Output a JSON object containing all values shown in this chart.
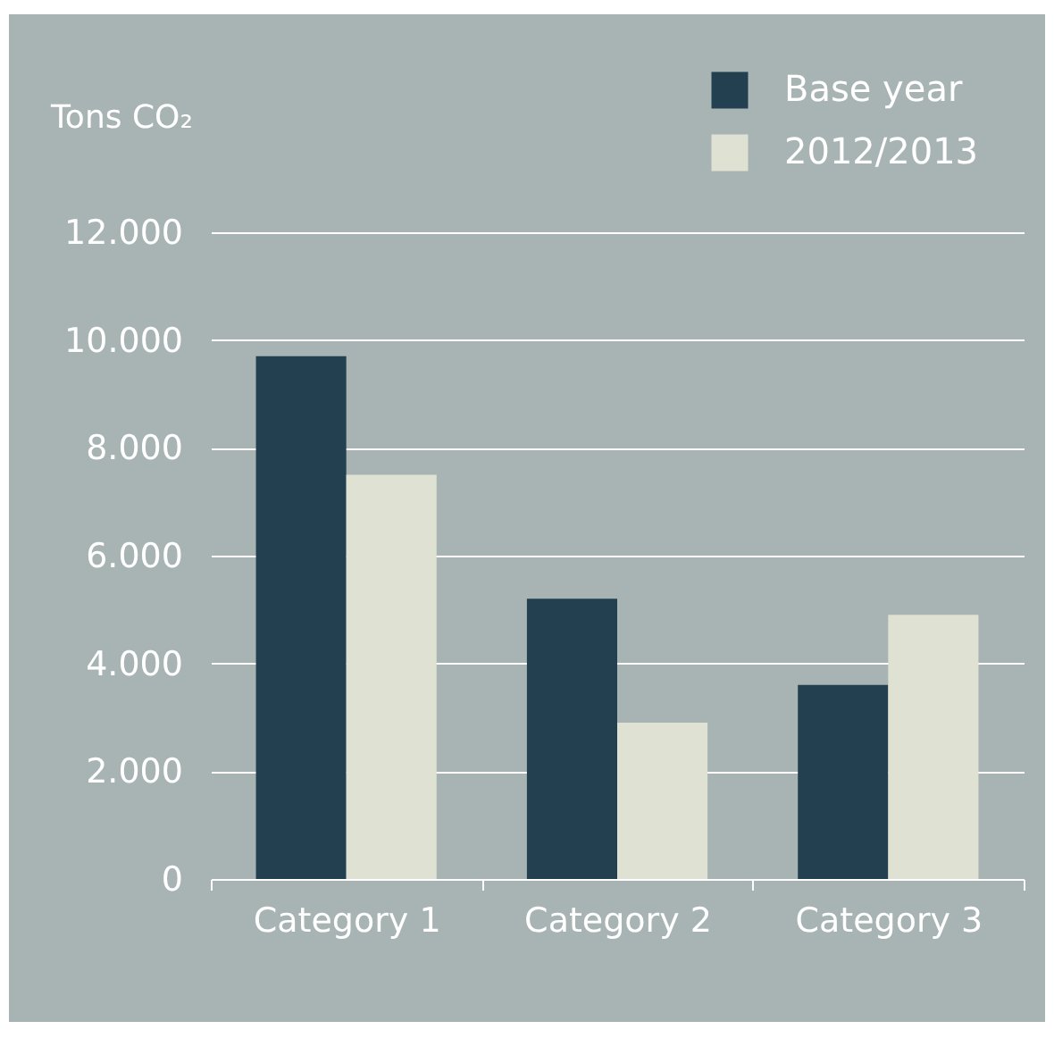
{
  "chart_data": {
    "type": "bar",
    "ylabel": "Tons CO₂",
    "categories": [
      "Category 1",
      "Category 2",
      "Category 3"
    ],
    "series": [
      {
        "name": "Base year",
        "color": "#22404f",
        "values": [
          9700,
          5200,
          3600
        ]
      },
      {
        "name": "2012/2013",
        "color": "#dfe1d2",
        "values": [
          7500,
          2900,
          4900
        ]
      }
    ],
    "ylim": [
      0,
      12000
    ],
    "yticks": [
      {
        "value": 0,
        "label": "0"
      },
      {
        "value": 2000,
        "label": "2.000"
      },
      {
        "value": 4000,
        "label": "4.000"
      },
      {
        "value": 6000,
        "label": "6.000"
      },
      {
        "value": 8000,
        "label": "8.000"
      },
      {
        "value": 10000,
        "label": "10.000"
      },
      {
        "value": 12000,
        "label": "12.000"
      }
    ],
    "grid": "y",
    "legend": "top right"
  }
}
